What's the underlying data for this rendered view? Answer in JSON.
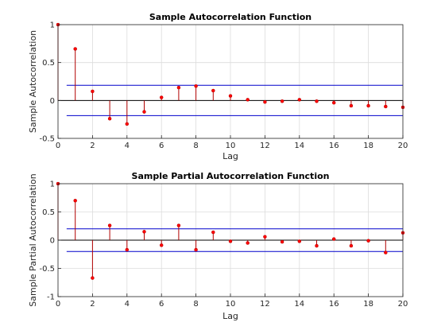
{
  "colors": {
    "stem": "#b00000",
    "marker": "#ff0000",
    "bound": "#0000cc",
    "zero_line": "#000000",
    "grid": "#dcdcdc",
    "axis": "#262626"
  },
  "chart_data": [
    {
      "type": "stem",
      "title": "Sample Autocorrelation Function",
      "xlabel": "Lag",
      "ylabel": "Sample Autocorrelation",
      "xlim": [
        0,
        20
      ],
      "ylim": [
        -0.5,
        1
      ],
      "xticks": [
        0,
        2,
        4,
        6,
        8,
        10,
        12,
        14,
        16,
        18,
        20
      ],
      "yticks": [
        -0.5,
        0,
        0.5,
        1
      ],
      "ytick_labels": [
        "-0.5",
        "0",
        "0.5",
        "1"
      ],
      "grid": true,
      "x": [
        0,
        1,
        2,
        3,
        4,
        5,
        6,
        7,
        8,
        9,
        10,
        11,
        12,
        13,
        14,
        15,
        16,
        17,
        18,
        19,
        20
      ],
      "values": [
        1.0,
        0.68,
        0.12,
        -0.24,
        -0.31,
        -0.15,
        0.04,
        0.17,
        0.19,
        0.13,
        0.06,
        0.01,
        -0.02,
        -0.01,
        0.01,
        -0.01,
        -0.03,
        -0.07,
        -0.07,
        -0.08,
        -0.09
      ],
      "confidence_bounds": [
        0.2,
        -0.2
      ]
    },
    {
      "type": "stem",
      "title": "Sample Partial Autocorrelation Function",
      "xlabel": "Lag",
      "ylabel": "Sample Partial Autocorrelation",
      "xlim": [
        0,
        20
      ],
      "ylim": [
        -1,
        1
      ],
      "xticks": [
        0,
        2,
        4,
        6,
        8,
        10,
        12,
        14,
        16,
        18,
        20
      ],
      "yticks": [
        -1,
        -0.5,
        0,
        0.5,
        1
      ],
      "ytick_labels": [
        "-1",
        "-0.5",
        "0",
        "0.5",
        "1"
      ],
      "grid": true,
      "x": [
        0,
        1,
        2,
        3,
        4,
        5,
        6,
        7,
        8,
        9,
        10,
        11,
        12,
        13,
        14,
        15,
        16,
        17,
        18,
        19,
        20
      ],
      "values": [
        1.0,
        0.7,
        -0.67,
        0.26,
        -0.17,
        0.15,
        -0.09,
        0.26,
        -0.17,
        0.14,
        -0.02,
        -0.05,
        0.06,
        -0.03,
        -0.02,
        -0.1,
        0.02,
        -0.1,
        -0.01,
        -0.22,
        0.13
      ],
      "confidence_bounds": [
        0.2,
        -0.2
      ]
    }
  ]
}
